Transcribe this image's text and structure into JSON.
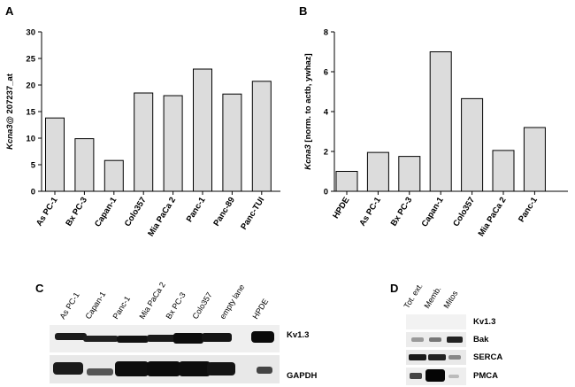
{
  "panels": {
    "A": "A",
    "B": "B",
    "C": "C",
    "D": "D"
  },
  "chart_data": [
    {
      "type": "bar",
      "ylabel_italic": "Kcna3",
      "ylabel_rest": "@ 207237_at",
      "categories": [
        "As PC-1",
        "Bx PC-3",
        "Capan-1",
        "Colo357",
        "Mia PaCa 2",
        "Panc-1",
        "Panc-89",
        "Panc-TUI"
      ],
      "values": [
        13.8,
        9.9,
        5.8,
        18.5,
        18.0,
        23.0,
        18.3,
        20.7
      ],
      "ylim": [
        0,
        30
      ],
      "yticks": [
        "0",
        "5",
        "10",
        "15",
        "20",
        "25",
        "30"
      ],
      "bar_color": "#dcdcdc"
    },
    {
      "type": "bar",
      "ylabel_italic": "Kcna3",
      "ylabel_rest": " [norm. to actb, ywhaz]",
      "categories": [
        "HPDE",
        "As PC-1",
        "Bx PC-3",
        "Capan-1",
        "Colo357",
        "Mia PaCa 2",
        "Panc-1"
      ],
      "values": [
        1.0,
        1.95,
        1.75,
        7.0,
        4.65,
        2.05,
        3.2
      ],
      "ylim": [
        0,
        8
      ],
      "yticks": [
        "0",
        "2",
        "4",
        "6",
        "8"
      ],
      "bar_color": "#dcdcdc"
    }
  ],
  "blot_c": {
    "lanes": [
      "As PC-1",
      "Capan-1",
      "Panc-1",
      "Mia PaCa 2",
      "Bx PC-3",
      "Colo357",
      "empty lane",
      "HPDE"
    ],
    "bands": [
      "Kv1.3",
      "GAPDH"
    ]
  },
  "blot_d": {
    "lanes": [
      "Tot. ext.",
      "Memb.",
      "Mitos"
    ],
    "bands": [
      "Kv1.3",
      "Bak",
      "SERCA",
      "PMCA"
    ]
  }
}
